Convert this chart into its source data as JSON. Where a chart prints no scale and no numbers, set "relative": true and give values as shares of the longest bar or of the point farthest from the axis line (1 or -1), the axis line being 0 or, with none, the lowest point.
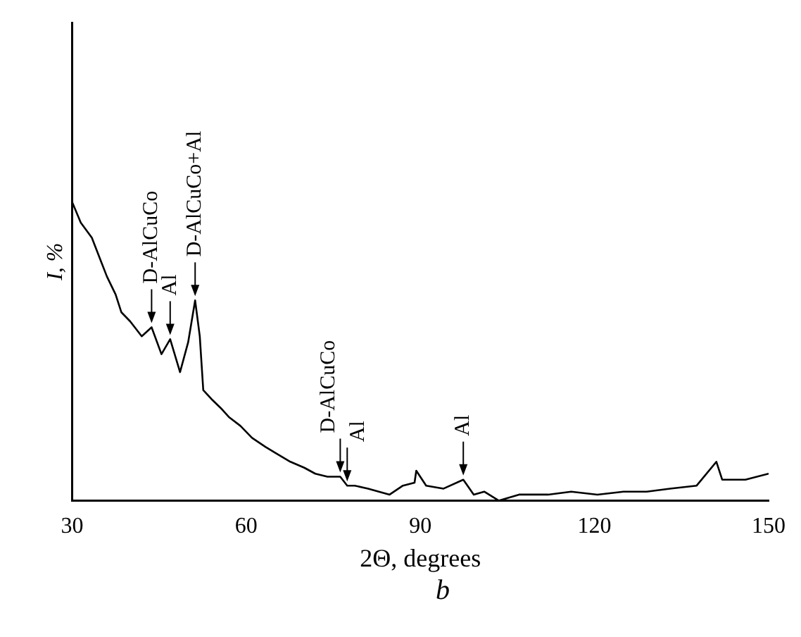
{
  "chart_data": {
    "type": "line",
    "relative": true,
    "xlabel": "2Θ, degrees",
    "ylabel": "I, %",
    "xlim": [
      30,
      150
    ],
    "xticks": [
      30,
      60,
      90,
      120,
      150
    ],
    "grid": false,
    "legend": false,
    "marker": "none",
    "line_style": "solid",
    "series": [
      {
        "color": "#000000",
        "x": [
          30,
          31.5,
          33.4,
          35,
          36,
          37.5,
          38.5,
          40,
          42,
          43.7,
          45.4,
          46.9,
          48.6,
          50,
          51.2,
          52,
          52.6,
          54,
          55.6,
          57,
          59,
          61,
          63.3,
          65,
          67.6,
          70,
          71.9,
          74,
          76.2,
          77.4,
          78.7,
          81,
          84.7,
          87,
          89,
          89.3,
          91,
          94,
          97.4,
          99.2,
          101,
          103.5,
          107,
          112,
          116,
          120.5,
          125,
          129,
          133,
          137.6,
          141,
          142,
          146,
          150
        ],
        "values": [
          1,
          0.93,
          0.88,
          0.8,
          0.75,
          0.69,
          0.63,
          0.6,
          0.55,
          0.58,
          0.49,
          0.54,
          0.43,
          0.53,
          0.67,
          0.55,
          0.37,
          0.34,
          0.31,
          0.28,
          0.25,
          0.21,
          0.18,
          0.16,
          0.13,
          0.11,
          0.09,
          0.08,
          0.08,
          0.05,
          0.05,
          0.04,
          0.02,
          0.05,
          0.06,
          0.1,
          0.05,
          0.04,
          0.07,
          0.02,
          0.03,
          0,
          0.02,
          0.02,
          0.03,
          0.02,
          0.03,
          0.03,
          0.04,
          0.05,
          0.13,
          0.07,
          0.07,
          0.09
        ]
      }
    ],
    "annotations": [
      {
        "text": "D-AlCuCo",
        "x": 43.7,
        "y": 0.58
      },
      {
        "text": "Al",
        "x": 46.9,
        "y": 0.54
      },
      {
        "text": "D-AlCuCo+Al",
        "x": 51.2,
        "y": 0.67
      },
      {
        "text": "D-AlCuCo",
        "x": 76.2,
        "y": 0.08
      },
      {
        "text": "Al",
        "x": 77.4,
        "y": 0.05
      },
      {
        "text": "Al",
        "x": 97.4,
        "y": 0.07
      },
      "b"
    ]
  }
}
